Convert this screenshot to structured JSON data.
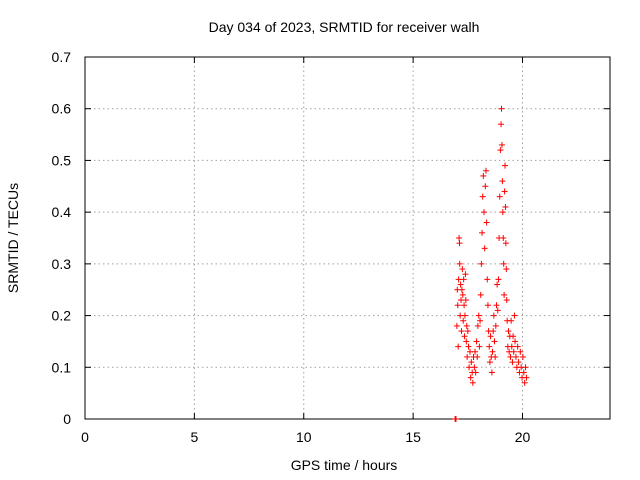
{
  "chart_data": {
    "type": "scatter",
    "title": "Day 034 of 2023, SRMTID for receiver walh",
    "xlabel": "GPS time / hours",
    "ylabel": "SRMTID / TECUs",
    "xlim": [
      0,
      24
    ],
    "ylim": [
      0,
      0.7
    ],
    "xticks": [
      0,
      5,
      10,
      15,
      20
    ],
    "yticks": [
      0,
      0.1,
      0.2,
      0.3,
      0.4,
      0.5,
      0.6,
      0.7
    ],
    "xtick_labels": [
      "0",
      "5",
      "10",
      "15",
      "20"
    ],
    "ytick_labels": [
      "0",
      "0.1",
      "0.2",
      "0.3",
      "0.4",
      "0.5",
      "0.6",
      "0.7"
    ],
    "grid": true,
    "marker": "+",
    "color": "#ff0000",
    "series": [
      {
        "name": "SRMTID",
        "points": [
          [
            16.92,
            0.0
          ],
          [
            16.94,
            0.0
          ],
          [
            16.96,
            0.0
          ],
          [
            17.0,
            0.18
          ],
          [
            17.02,
            0.25
          ],
          [
            17.04,
            0.22
          ],
          [
            17.06,
            0.14
          ],
          [
            17.08,
            0.27
          ],
          [
            17.1,
            0.35
          ],
          [
            17.12,
            0.34
          ],
          [
            17.13,
            0.3
          ],
          [
            17.15,
            0.2
          ],
          [
            17.17,
            0.26
          ],
          [
            17.19,
            0.23
          ],
          [
            17.21,
            0.17
          ],
          [
            17.23,
            0.25
          ],
          [
            17.25,
            0.29
          ],
          [
            17.27,
            0.24
          ],
          [
            17.29,
            0.19
          ],
          [
            17.31,
            0.27
          ],
          [
            17.33,
            0.22
          ],
          [
            17.35,
            0.16
          ],
          [
            17.37,
            0.2
          ],
          [
            17.39,
            0.28
          ],
          [
            17.41,
            0.23
          ],
          [
            17.43,
            0.15
          ],
          [
            17.45,
            0.18
          ],
          [
            17.47,
            0.12
          ],
          [
            17.5,
            0.17
          ],
          [
            17.53,
            0.14
          ],
          [
            17.56,
            0.1
          ],
          [
            17.6,
            0.13
          ],
          [
            17.63,
            0.08
          ],
          [
            17.66,
            0.11
          ],
          [
            17.7,
            0.09
          ],
          [
            17.73,
            0.07
          ],
          [
            17.76,
            0.12
          ],
          [
            17.8,
            0.1
          ],
          [
            17.83,
            0.13
          ],
          [
            17.86,
            0.09
          ],
          [
            17.9,
            0.15
          ],
          [
            17.93,
            0.12
          ],
          [
            17.96,
            0.18
          ],
          [
            18.0,
            0.2
          ],
          [
            18.03,
            0.14
          ],
          [
            18.06,
            0.19
          ],
          [
            18.09,
            0.24
          ],
          [
            18.12,
            0.3
          ],
          [
            18.15,
            0.36
          ],
          [
            18.18,
            0.43
          ],
          [
            18.21,
            0.47
          ],
          [
            18.24,
            0.4
          ],
          [
            18.27,
            0.33
          ],
          [
            18.3,
            0.45
          ],
          [
            18.33,
            0.48
          ],
          [
            18.36,
            0.38
          ],
          [
            18.39,
            0.27
          ],
          [
            18.42,
            0.22
          ],
          [
            18.45,
            0.17
          ],
          [
            18.48,
            0.14
          ],
          [
            18.51,
            0.11
          ],
          [
            18.54,
            0.16
          ],
          [
            18.57,
            0.12
          ],
          [
            18.6,
            0.09
          ],
          [
            18.63,
            0.13
          ],
          [
            18.66,
            0.17
          ],
          [
            18.69,
            0.2
          ],
          [
            18.72,
            0.15
          ],
          [
            18.75,
            0.12
          ],
          [
            18.78,
            0.18
          ],
          [
            18.81,
            0.22
          ],
          [
            18.84,
            0.26
          ],
          [
            18.87,
            0.21
          ],
          [
            18.9,
            0.27
          ],
          [
            18.93,
            0.35
          ],
          [
            18.96,
            0.43
          ],
          [
            18.99,
            0.52
          ],
          [
            19.02,
            0.57
          ],
          [
            19.04,
            0.6
          ],
          [
            19.06,
            0.53
          ],
          [
            19.08,
            0.46
          ],
          [
            19.1,
            0.4
          ],
          [
            19.12,
            0.35
          ],
          [
            19.14,
            0.3
          ],
          [
            19.16,
            0.24
          ],
          [
            19.18,
            0.44
          ],
          [
            19.2,
            0.49
          ],
          [
            19.22,
            0.41
          ],
          [
            19.24,
            0.34
          ],
          [
            19.26,
            0.29
          ],
          [
            19.28,
            0.23
          ],
          [
            19.3,
            0.19
          ],
          [
            19.33,
            0.14
          ],
          [
            19.36,
            0.17
          ],
          [
            19.39,
            0.13
          ],
          [
            19.42,
            0.16
          ],
          [
            19.45,
            0.12
          ],
          [
            19.48,
            0.19
          ],
          [
            19.51,
            0.14
          ],
          [
            19.54,
            0.11
          ],
          [
            19.57,
            0.16
          ],
          [
            19.6,
            0.13
          ],
          [
            19.63,
            0.2
          ],
          [
            19.66,
            0.15
          ],
          [
            19.7,
            0.12
          ],
          [
            19.74,
            0.1
          ],
          [
            19.78,
            0.14
          ],
          [
            19.82,
            0.11
          ],
          [
            19.86,
            0.09
          ],
          [
            19.9,
            0.13
          ],
          [
            19.94,
            0.1
          ],
          [
            19.98,
            0.08
          ],
          [
            20.02,
            0.12
          ],
          [
            20.06,
            0.09
          ],
          [
            20.1,
            0.07
          ],
          [
            20.14,
            0.1
          ],
          [
            20.18,
            0.08
          ]
        ]
      }
    ]
  }
}
